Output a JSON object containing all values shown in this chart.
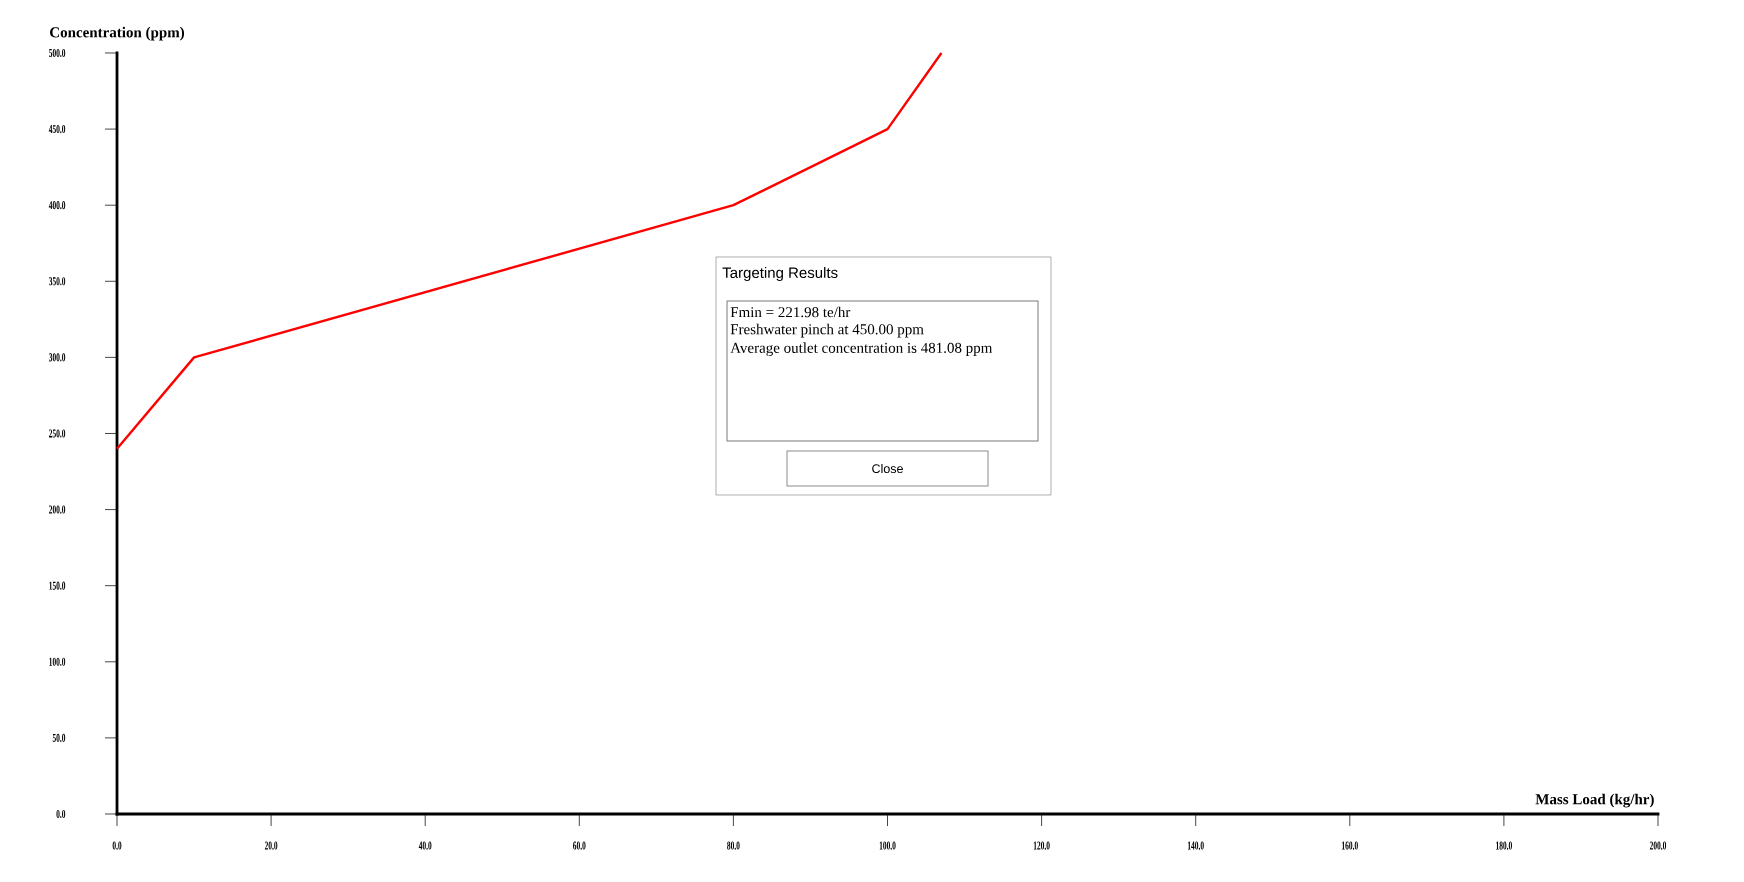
{
  "chart_data": {
    "type": "line",
    "xlabel": "Mass Load (kg/hr)",
    "ylabel": "Concentration (ppm)",
    "x": [
      0,
      10,
      80,
      100,
      107
    ],
    "series": [
      {
        "color": "#ff0000",
        "values": [
          240,
          300,
          400,
          450,
          500
        ]
      }
    ],
    "xlim": [
      0,
      200
    ],
    "ylim": [
      0,
      500
    ],
    "xticks": [
      {
        "value": 0,
        "label": "0.0"
      },
      {
        "value": 20,
        "label": "20.0"
      },
      {
        "value": 40,
        "label": "40.0"
      },
      {
        "value": 60,
        "label": "60.0"
      },
      {
        "value": 80,
        "label": "80.0"
      },
      {
        "value": 100,
        "label": "100.0"
      },
      {
        "value": 120,
        "label": "120.0"
      },
      {
        "value": 140,
        "label": "140.0"
      },
      {
        "value": 160,
        "label": "160.0"
      },
      {
        "value": 180,
        "label": "180.0"
      },
      {
        "value": 200,
        "label": "200.0"
      }
    ],
    "yticks": [
      {
        "value": 0,
        "label": "0.0"
      },
      {
        "value": 50,
        "label": "50.0"
      },
      {
        "value": 100,
        "label": "100.0"
      },
      {
        "value": 150,
        "label": "150.0"
      },
      {
        "value": 200,
        "label": "200.0"
      },
      {
        "value": 250,
        "label": "250.0"
      },
      {
        "value": 300,
        "label": "300.0"
      },
      {
        "value": 350,
        "label": "350.0"
      },
      {
        "value": 400,
        "label": "400.0"
      },
      {
        "value": 450,
        "label": "450.0"
      },
      {
        "value": 500,
        "label": "500.0"
      }
    ],
    "annotations": [
      "Targeting Results",
      "Fmin = 221.98 te/hr",
      "Freshwater pinch at 450.00 ppm",
      "Average outlet concentration is 481.08 ppm",
      "Close"
    ]
  }
}
